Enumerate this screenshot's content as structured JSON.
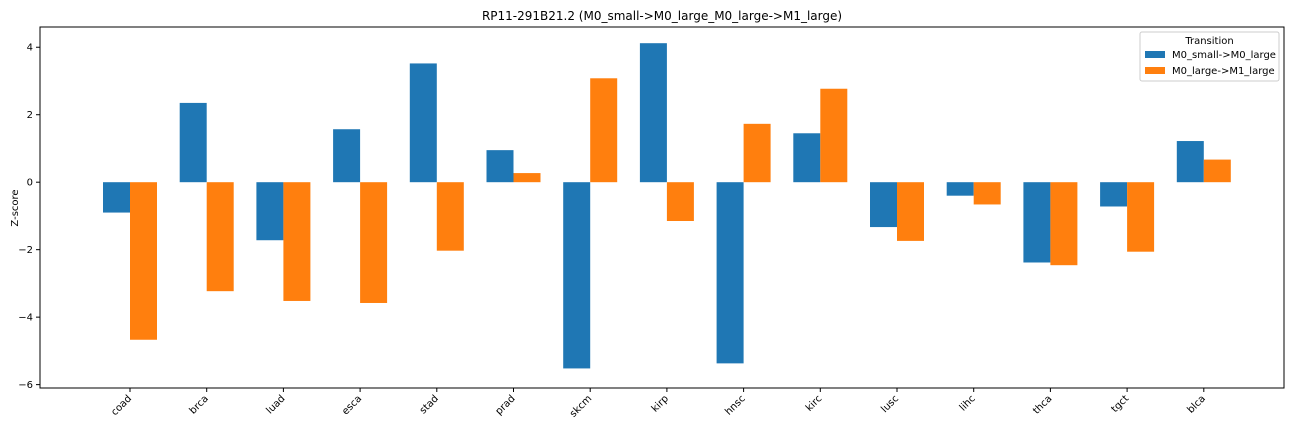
{
  "chart_data": {
    "type": "bar",
    "title": "RP11-291B21.2 (M0_small->M0_large_M0_large->M1_large)",
    "xlabel": "",
    "ylabel": "Z-score",
    "ylim": [
      -6.1,
      4.6
    ],
    "yticks": [
      -6,
      -4,
      -2,
      0,
      2,
      4
    ],
    "categories": [
      "coad",
      "brca",
      "luad",
      "esca",
      "stad",
      "prad",
      "skcm",
      "kirp",
      "hnsc",
      "kirc",
      "lusc",
      "lihc",
      "thca",
      "tgct",
      "blca"
    ],
    "series": [
      {
        "name": "M0_small->M0_large",
        "color": "#1f77b4",
        "values": [
          -0.9,
          2.35,
          -1.72,
          1.57,
          3.52,
          0.95,
          -5.52,
          4.12,
          -5.37,
          1.45,
          -1.33,
          -0.4,
          -2.38,
          -0.72,
          1.22
        ]
      },
      {
        "name": "M0_large->M1_large",
        "color": "#ff7f0e",
        "values": [
          -4.67,
          -3.23,
          -3.52,
          -3.58,
          -2.03,
          0.27,
          3.08,
          -1.15,
          1.73,
          2.77,
          -1.74,
          -0.66,
          -2.46,
          -2.06,
          0.67
        ]
      }
    ],
    "legend": {
      "title": "Transition",
      "position": "top-right"
    },
    "grid": false
  }
}
